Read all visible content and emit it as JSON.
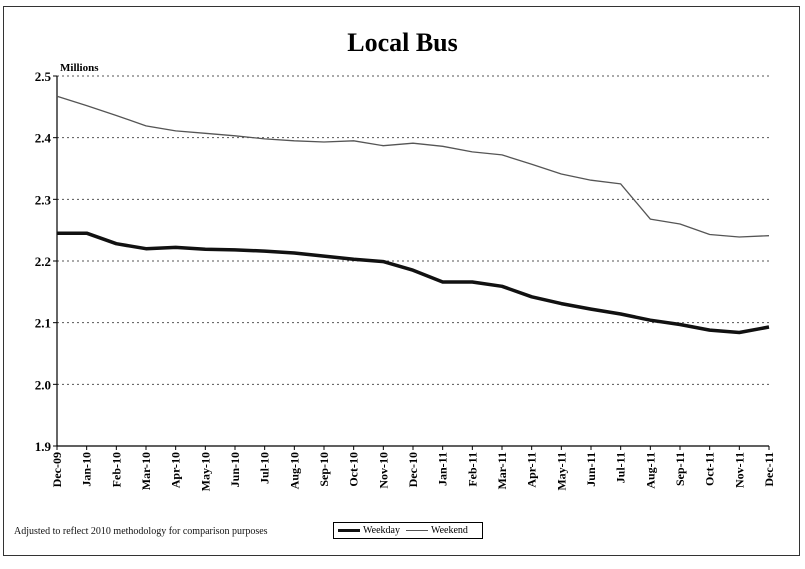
{
  "chart_data": {
    "type": "line",
    "title": "Local Bus",
    "ylabel": "Millions",
    "ylim": [
      1.9,
      2.5
    ],
    "yticks": [
      "1.9",
      "2.0",
      "2.1",
      "2.2",
      "2.3",
      "2.4",
      "2.5"
    ],
    "grid": true,
    "categories": [
      "Dec-09",
      "Jan-10",
      "Feb-10",
      "Mar-10",
      "Apr-10",
      "May-10",
      "Jun-10",
      "Jul-10",
      "Aug-10",
      "Sep-10",
      "Oct-10",
      "Nov-10",
      "Dec-10",
      "Jan-11",
      "Feb-11",
      "Mar-11",
      "Apr-11",
      "May-11",
      "Jun-11",
      "Jul-11",
      "Aug-11",
      "Sep-11",
      "Oct-11",
      "Nov-11",
      "Dec-11"
    ],
    "series": [
      {
        "name": "Weekday",
        "color": "#111111",
        "values": [
          2.245,
          2.245,
          2.228,
          2.22,
          2.222,
          2.219,
          2.218,
          2.216,
          2.213,
          2.208,
          2.203,
          2.199,
          2.185,
          2.166,
          2.166,
          2.159,
          2.142,
          2.131,
          2.122,
          2.114,
          2.104,
          2.097,
          2.088,
          2.084,
          2.093
        ]
      },
      {
        "name": "Weekend",
        "color": "#555555",
        "values": [
          2.467,
          2.452,
          2.436,
          2.419,
          2.411,
          2.407,
          2.403,
          2.398,
          2.395,
          2.393,
          2.395,
          2.387,
          2.391,
          2.386,
          2.377,
          2.372,
          2.357,
          2.341,
          2.331,
          2.325,
          2.268,
          2.26,
          2.243,
          2.239,
          2.241
        ]
      }
    ],
    "legend_position": "bottom-center",
    "footnote": "Adjusted to reflect 2010 methodology for comparison purposes"
  }
}
